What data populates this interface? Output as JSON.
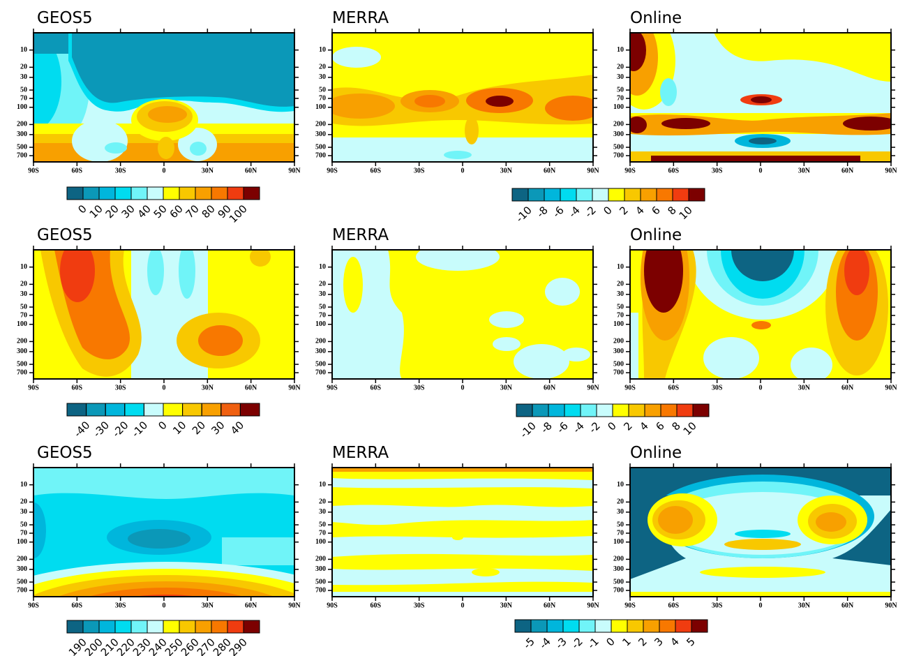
{
  "chart_data": [
    {
      "type": "contour",
      "title": "GEOS5",
      "xlim": [
        -90,
        90
      ],
      "xticks": [
        {
          "value": -90,
          "label": "90S"
        },
        {
          "value": -60,
          "label": "60S"
        },
        {
          "value": -30,
          "label": "30S"
        },
        0,
        {
          "value": 30,
          "label": "30N"
        },
        {
          "value": 60,
          "label": "60N"
        },
        {
          "value": 90,
          "label": "90N"
        }
      ],
      "ylim": [
        900,
        5
      ],
      "ylog": true,
      "yticks": [
        10,
        20,
        30,
        50,
        70,
        100,
        200,
        300,
        500,
        700
      ],
      "colorbar": {
        "levels": [
          0,
          10,
          20,
          30,
          40,
          50,
          60,
          70,
          80,
          90,
          100
        ],
        "colors": [
          "#0d6483",
          "#0b98b8",
          "#00b6dc",
          "#00dcf0",
          "#70f4f8",
          "#c8fcfc",
          "#ffff00",
          "#f8c800",
          "#f8a000",
          "#f87800",
          "#f03c10",
          "#7c0000"
        ]
      }
    },
    {
      "type": "contour",
      "title": "MERRA",
      "xlim": [
        -90,
        90
      ],
      "xticks": [
        {
          "value": -90,
          "label": "90S"
        },
        {
          "value": -60,
          "label": "60S"
        },
        {
          "value": -30,
          "label": "30S"
        },
        0,
        {
          "value": 30,
          "label": "30N"
        },
        {
          "value": 60,
          "label": "60N"
        },
        {
          "value": 90,
          "label": "90N"
        }
      ],
      "ylim": [
        900,
        5
      ],
      "ylog": true,
      "yticks": [
        10,
        20,
        30,
        50,
        70,
        100,
        200,
        300,
        500,
        700
      ],
      "colorbar": {
        "levels": [
          -10,
          -8,
          -6,
          -4,
          -2,
          0,
          2,
          4,
          6,
          8,
          10
        ],
        "colors": [
          "#0d6483",
          "#0b98b8",
          "#00b6dc",
          "#00dcf0",
          "#70f4f8",
          "#c8fcfc",
          "#ffff00",
          "#f8c800",
          "#f8a000",
          "#f87800",
          "#f03c10",
          "#7c0000"
        ]
      }
    },
    {
      "type": "contour",
      "title": "Online",
      "xlim": [
        -90,
        90
      ],
      "xticks": [
        {
          "value": -90,
          "label": "90S"
        },
        {
          "value": -60,
          "label": "60S"
        },
        {
          "value": -30,
          "label": "30S"
        },
        0,
        {
          "value": 30,
          "label": "30N"
        },
        {
          "value": 60,
          "label": "60N"
        },
        {
          "value": 90,
          "label": "90N"
        }
      ],
      "ylim": [
        900,
        5
      ],
      "ylog": true,
      "yticks": [
        10,
        20,
        30,
        50,
        70,
        100,
        200,
        300,
        500,
        700
      ]
    },
    {
      "type": "contour",
      "title": "GEOS5",
      "xlim": [
        -90,
        90
      ],
      "xticks": [
        {
          "value": -90,
          "label": "90S"
        },
        {
          "value": -60,
          "label": "60S"
        },
        {
          "value": -30,
          "label": "30S"
        },
        0,
        {
          "value": 30,
          "label": "30N"
        },
        {
          "value": 60,
          "label": "60N"
        },
        {
          "value": 90,
          "label": "90N"
        }
      ],
      "ylim": [
        900,
        5
      ],
      "ylog": true,
      "yticks": [
        10,
        20,
        30,
        50,
        70,
        100,
        200,
        300,
        500,
        700
      ],
      "colorbar": {
        "levels": [
          -40,
          -30,
          -20,
          -10,
          0,
          10,
          20,
          30,
          40
        ],
        "colors": [
          "#0d6483",
          "#0b98b8",
          "#00b6dc",
          "#00dcf0",
          "#c8fcfc",
          "#ffff00",
          "#f8c800",
          "#f8a000",
          "#f06010",
          "#7c0000"
        ]
      }
    },
    {
      "type": "contour",
      "title": "MERRA",
      "xlim": [
        -90,
        90
      ],
      "xticks": [
        {
          "value": -90,
          "label": "90S"
        },
        {
          "value": -60,
          "label": "60S"
        },
        {
          "value": -30,
          "label": "30S"
        },
        0,
        {
          "value": 30,
          "label": "30N"
        },
        {
          "value": 60,
          "label": "60N"
        },
        {
          "value": 90,
          "label": "90N"
        }
      ],
      "ylim": [
        900,
        5
      ],
      "ylog": true,
      "yticks": [
        10,
        20,
        30,
        50,
        70,
        100,
        200,
        300,
        500,
        700
      ],
      "colorbar": {
        "levels": [
          -10,
          -8,
          -6,
          -4,
          -2,
          0,
          2,
          4,
          6,
          8,
          10
        ],
        "colors": [
          "#0d6483",
          "#0b98b8",
          "#00b6dc",
          "#00dcf0",
          "#70f4f8",
          "#c8fcfc",
          "#ffff00",
          "#f8c800",
          "#f8a000",
          "#f87800",
          "#f03c10",
          "#7c0000"
        ]
      }
    },
    {
      "type": "contour",
      "title": "Online",
      "xlim": [
        -90,
        90
      ],
      "xticks": [
        {
          "value": -90,
          "label": "90S"
        },
        {
          "value": -60,
          "label": "60S"
        },
        {
          "value": -30,
          "label": "30S"
        },
        0,
        {
          "value": 30,
          "label": "30N"
        },
        {
          "value": 60,
          "label": "60N"
        },
        {
          "value": 90,
          "label": "90N"
        }
      ],
      "ylim": [
        900,
        5
      ],
      "ylog": true,
      "yticks": [
        10,
        20,
        30,
        50,
        70,
        100,
        200,
        300,
        500,
        700
      ]
    },
    {
      "type": "contour",
      "title": "GEOS5",
      "xlim": [
        -90,
        90
      ],
      "xticks": [
        {
          "value": -90,
          "label": "90S"
        },
        {
          "value": -60,
          "label": "60S"
        },
        {
          "value": -30,
          "label": "30S"
        },
        0,
        {
          "value": 30,
          "label": "30N"
        },
        {
          "value": 60,
          "label": "60N"
        },
        {
          "value": 90,
          "label": "90N"
        }
      ],
      "ylim": [
        900,
        5
      ],
      "ylog": true,
      "yticks": [
        10,
        20,
        30,
        50,
        70,
        100,
        200,
        300,
        500,
        700
      ],
      "colorbar": {
        "levels": [
          190,
          200,
          210,
          220,
          230,
          240,
          250,
          260,
          270,
          280,
          290
        ],
        "colors": [
          "#0d6483",
          "#0b98b8",
          "#00b6dc",
          "#00dcf0",
          "#70f4f8",
          "#c8fcfc",
          "#ffff00",
          "#f8c800",
          "#f8a000",
          "#f87800",
          "#f03c10",
          "#7c0000"
        ]
      }
    },
    {
      "type": "contour",
      "title": "MERRA",
      "xlim": [
        -90,
        90
      ],
      "xticks": [
        {
          "value": -90,
          "label": "90S"
        },
        {
          "value": -60,
          "label": "60S"
        },
        {
          "value": -30,
          "label": "30S"
        },
        0,
        {
          "value": 30,
          "label": "30N"
        },
        {
          "value": 60,
          "label": "60N"
        },
        {
          "value": 90,
          "label": "90N"
        }
      ],
      "ylim": [
        900,
        5
      ],
      "ylog": true,
      "yticks": [
        10,
        20,
        30,
        50,
        70,
        100,
        200,
        300,
        500,
        700
      ],
      "colorbar": {
        "levels": [
          -5,
          -4,
          -3,
          -2,
          -1,
          0,
          1,
          2,
          3,
          4,
          5
        ],
        "colors": [
          "#0d6483",
          "#0b98b8",
          "#00b6dc",
          "#00dcf0",
          "#70f4f8",
          "#c8fcfc",
          "#ffff00",
          "#f8c800",
          "#f8a000",
          "#f87800",
          "#f03c10",
          "#7c0000"
        ]
      }
    },
    {
      "type": "contour",
      "title": "Online",
      "xlim": [
        -90,
        90
      ],
      "xticks": [
        {
          "value": -90,
          "label": "90S"
        },
        {
          "value": -60,
          "label": "60S"
        },
        {
          "value": -30,
          "label": "30S"
        },
        0,
        {
          "value": 30,
          "label": "30N"
        },
        {
          "value": 60,
          "label": "60N"
        },
        {
          "value": 90,
          "label": "90N"
        }
      ],
      "ylim": [
        900,
        5
      ],
      "ylog": true,
      "yticks": [
        10,
        20,
        30,
        50,
        70,
        100,
        200,
        300,
        500,
        700
      ]
    }
  ]
}
